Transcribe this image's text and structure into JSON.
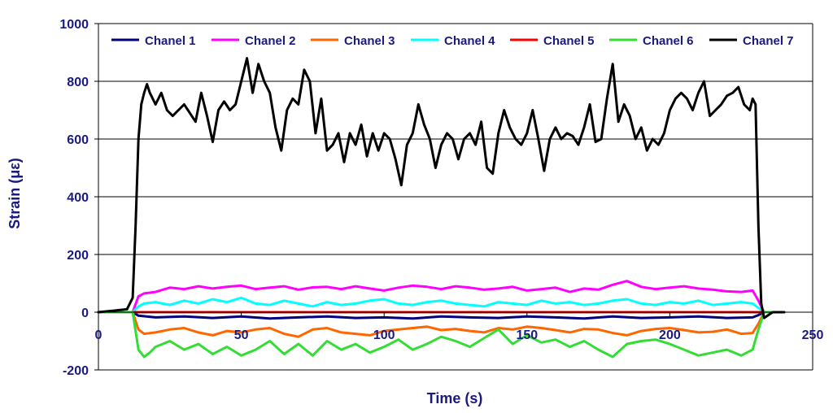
{
  "chart_data": {
    "type": "line",
    "title": "",
    "xlabel": "Time (s)",
    "ylabel": "Strain (με)",
    "xlim": [
      0,
      250
    ],
    "ylim": [
      -200,
      1000
    ],
    "xticks": [
      0,
      50,
      100,
      150,
      200,
      250
    ],
    "yticks": [
      -200,
      0,
      200,
      400,
      600,
      800,
      1000
    ],
    "grid": "horizontal",
    "legend_position": "top",
    "series": [
      {
        "name": "Chanel 1",
        "color": "#00007f",
        "x": [
          0,
          12,
          14,
          20,
          30,
          40,
          50,
          60,
          70,
          80,
          90,
          100,
          110,
          120,
          130,
          140,
          150,
          160,
          170,
          180,
          190,
          200,
          210,
          220,
          229,
          231,
          233,
          240
        ],
        "y": [
          0,
          0,
          -12,
          -18,
          -15,
          -20,
          -15,
          -22,
          -18,
          -15,
          -20,
          -18,
          -22,
          -15,
          -18,
          -20,
          -15,
          -18,
          -22,
          -15,
          -20,
          -18,
          -15,
          -20,
          -18,
          -10,
          0,
          0
        ]
      },
      {
        "name": "Chanel 2",
        "color": "#ff00ff",
        "x": [
          0,
          12,
          14,
          16,
          20,
          25,
          30,
          35,
          40,
          45,
          50,
          55,
          60,
          65,
          70,
          75,
          80,
          85,
          90,
          95,
          100,
          105,
          110,
          115,
          120,
          125,
          130,
          135,
          140,
          145,
          150,
          155,
          160,
          165,
          170,
          175,
          180,
          185,
          190,
          195,
          200,
          205,
          210,
          215,
          220,
          225,
          229,
          231,
          233,
          240
        ],
        "y": [
          0,
          0,
          55,
          65,
          70,
          85,
          80,
          90,
          82,
          88,
          92,
          80,
          85,
          90,
          78,
          86,
          88,
          80,
          90,
          82,
          75,
          85,
          92,
          88,
          80,
          90,
          85,
          78,
          82,
          88,
          75,
          80,
          85,
          70,
          82,
          78,
          95,
          108,
          88,
          80,
          85,
          90,
          82,
          78,
          72,
          70,
          75,
          40,
          0,
          0
        ]
      },
      {
        "name": "Chanel 3",
        "color": "#ff6600",
        "x": [
          0,
          12,
          14,
          16,
          20,
          25,
          30,
          35,
          40,
          45,
          50,
          55,
          60,
          65,
          70,
          75,
          80,
          85,
          90,
          95,
          100,
          105,
          110,
          115,
          120,
          125,
          130,
          135,
          140,
          145,
          150,
          155,
          160,
          165,
          170,
          175,
          180,
          185,
          190,
          195,
          200,
          205,
          210,
          215,
          220,
          225,
          229,
          231,
          233,
          240
        ],
        "y": [
          0,
          0,
          -60,
          -75,
          -70,
          -60,
          -55,
          -70,
          -80,
          -65,
          -70,
          -60,
          -55,
          -75,
          -85,
          -60,
          -55,
          -70,
          -75,
          -80,
          -65,
          -60,
          -55,
          -50,
          -62,
          -58,
          -65,
          -70,
          -55,
          -60,
          -50,
          -55,
          -62,
          -70,
          -58,
          -60,
          -72,
          -80,
          -65,
          -58,
          -55,
          -62,
          -70,
          -68,
          -60,
          -75,
          -72,
          -40,
          0,
          0
        ]
      },
      {
        "name": "Chanel 4",
        "color": "#00ffff",
        "x": [
          0,
          12,
          14,
          16,
          20,
          25,
          30,
          35,
          40,
          45,
          50,
          55,
          60,
          65,
          70,
          75,
          80,
          85,
          90,
          95,
          100,
          105,
          110,
          115,
          120,
          125,
          130,
          135,
          140,
          145,
          150,
          155,
          160,
          165,
          170,
          175,
          180,
          185,
          190,
          195,
          200,
          205,
          210,
          215,
          220,
          225,
          229,
          231,
          233,
          240
        ],
        "y": [
          0,
          0,
          20,
          30,
          35,
          25,
          40,
          30,
          45,
          35,
          50,
          30,
          25,
          40,
          30,
          20,
          35,
          25,
          30,
          40,
          45,
          30,
          25,
          35,
          40,
          30,
          25,
          20,
          35,
          30,
          25,
          40,
          30,
          35,
          25,
          30,
          40,
          45,
          30,
          25,
          35,
          30,
          40,
          25,
          30,
          35,
          30,
          15,
          0,
          0
        ]
      },
      {
        "name": "Chanel 5",
        "color": "#ff0000",
        "x": [
          0,
          240
        ],
        "y": [
          0,
          0
        ]
      },
      {
        "name": "Chanel 6",
        "color": "#33dd33",
        "x": [
          0,
          12,
          14,
          16,
          18,
          20,
          25,
          30,
          35,
          40,
          45,
          50,
          55,
          60,
          65,
          70,
          75,
          80,
          85,
          90,
          95,
          100,
          105,
          110,
          115,
          120,
          125,
          130,
          135,
          140,
          145,
          150,
          155,
          160,
          165,
          170,
          175,
          180,
          185,
          190,
          195,
          200,
          205,
          210,
          215,
          220,
          225,
          229,
          231,
          233,
          240
        ],
        "y": [
          0,
          0,
          -130,
          -155,
          -140,
          -120,
          -100,
          -130,
          -110,
          -145,
          -120,
          -150,
          -130,
          -100,
          -145,
          -110,
          -150,
          -100,
          -130,
          -110,
          -140,
          -120,
          -95,
          -130,
          -110,
          -85,
          -100,
          -120,
          -90,
          -60,
          -110,
          -80,
          -105,
          -95,
          -120,
          -100,
          -130,
          -155,
          -110,
          -100,
          -95,
          -110,
          -130,
          -150,
          -140,
          -130,
          -150,
          -130,
          -60,
          0,
          0
        ]
      },
      {
        "name": "Chanel 7",
        "color": "#000000",
        "x": [
          0,
          5,
          10,
          12,
          13,
          14,
          15,
          16,
          17,
          18,
          20,
          22,
          24,
          26,
          28,
          30,
          32,
          34,
          36,
          38,
          40,
          42,
          44,
          46,
          48,
          50,
          52,
          54,
          56,
          58,
          60,
          62,
          64,
          66,
          68,
          70,
          72,
          74,
          76,
          78,
          80,
          82,
          84,
          86,
          88,
          90,
          92,
          94,
          96,
          98,
          100,
          102,
          104,
          106,
          108,
          110,
          112,
          114,
          116,
          118,
          120,
          122,
          124,
          126,
          128,
          130,
          132,
          134,
          136,
          138,
          140,
          142,
          144,
          146,
          148,
          150,
          152,
          154,
          156,
          158,
          160,
          162,
          164,
          166,
          168,
          170,
          172,
          174,
          176,
          178,
          180,
          182,
          184,
          186,
          188,
          190,
          192,
          194,
          196,
          198,
          200,
          202,
          204,
          206,
          208,
          210,
          212,
          214,
          216,
          218,
          220,
          222,
          224,
          226,
          228,
          229,
          230,
          231,
          232,
          233,
          236,
          240
        ],
        "y": [
          0,
          5,
          10,
          50,
          300,
          600,
          720,
          760,
          790,
          760,
          720,
          760,
          700,
          680,
          700,
          720,
          690,
          660,
          760,
          680,
          590,
          700,
          730,
          700,
          720,
          800,
          880,
          760,
          860,
          800,
          760,
          640,
          560,
          700,
          740,
          720,
          840,
          800,
          620,
          740,
          560,
          580,
          620,
          520,
          620,
          580,
          650,
          540,
          620,
          560,
          620,
          600,
          530,
          440,
          580,
          620,
          720,
          650,
          600,
          500,
          580,
          620,
          600,
          530,
          600,
          620,
          580,
          660,
          500,
          480,
          620,
          700,
          640,
          600,
          580,
          620,
          700,
          600,
          490,
          600,
          640,
          600,
          620,
          610,
          580,
          640,
          720,
          590,
          600,
          740,
          860,
          660,
          720,
          680,
          600,
          640,
          560,
          600,
          580,
          620,
          700,
          740,
          760,
          740,
          700,
          760,
          800,
          680,
          700,
          720,
          750,
          760,
          780,
          720,
          700,
          740,
          720,
          300,
          30,
          -20,
          0,
          0
        ]
      }
    ]
  }
}
